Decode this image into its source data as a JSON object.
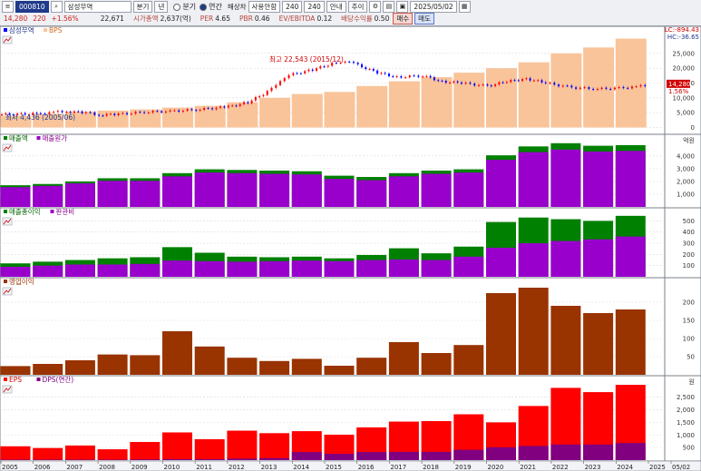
{
  "toolbar": {
    "code": "000810",
    "name": "삼성무역",
    "btn_period": "분기",
    "btn_year": "년",
    "radio_quarter": "분기",
    "radio_annual": "연간",
    "field_type": "해상차",
    "field_mode": "사용안함",
    "count_a": "240",
    "count_b": "240",
    "btn_guide": "안내",
    "btn_add": "추이",
    "date": "2025/05/02",
    "price": "14,280",
    "change": "220",
    "change_pct": "+1.56%",
    "volume": "22,671",
    "mcap_label": "시가총액",
    "mcap_value": "2,637(억)",
    "per_label": "PER",
    "per_value": "4.65",
    "pbr_label": "PBR",
    "pbr_value": "0.46",
    "ev_label": "EV/EBITDA",
    "ev_value": "0.12",
    "div_label": "배당수익률",
    "div_value": "0.50",
    "buy_label": "매수",
    "sell_label": "매도"
  },
  "colors": {
    "bps": "#f9c49a",
    "sales": "#008000",
    "cost": "#9900cc",
    "op": "#993300",
    "eps": "#ff0000",
    "dps": "#800080",
    "candle_up": "#ff0000",
    "candle_down": "#0000ff"
  },
  "chart_data": [
    {
      "type": "bar",
      "panel": "price_bps",
      "legend": [
        "삼성무역",
        "BPS"
      ],
      "categories": [
        "2005",
        "2006",
        "2007",
        "2008",
        "2009",
        "2010",
        "2011",
        "2012",
        "2013",
        "2014",
        "2015",
        "2016",
        "2017",
        "2018",
        "2019",
        "2020",
        "2021",
        "2022",
        "2023",
        "2024"
      ],
      "series": [
        {
          "name": "BPS",
          "values": [
            4000,
            4600,
            5400,
            5700,
            6100,
            6700,
            7300,
            8500,
            10000,
            11300,
            12000,
            14000,
            15600,
            17000,
            18500,
            20000,
            22000,
            25000,
            27000,
            30000
          ]
        }
      ],
      "ylim": [
        -2000,
        32000
      ],
      "yticks": [
        0,
        5000,
        10000,
        15000,
        20000,
        25000
      ],
      "ytick_labels": [
        "0",
        "5,000",
        "10,000",
        "15,000",
        "20,000",
        "25,000"
      ],
      "annotations": [
        "최고 22,543 (2015/12)",
        "최저 4,436 (2005/06)"
      ],
      "right_labels": [
        "LC:-894.43",
        "HC:-36.65"
      ],
      "last_price": "14,280",
      "last_pct": "1.56%"
    },
    {
      "type": "bar",
      "panel": "sales",
      "legend": [
        "매출액",
        "매출원가"
      ],
      "unit": "억원",
      "categories": [
        "2005",
        "2006",
        "2007",
        "2008",
        "2009",
        "2010",
        "2011",
        "2012",
        "2013",
        "2014",
        "2015",
        "2016",
        "2017",
        "2018",
        "2019",
        "2020",
        "2021",
        "2022",
        "2023",
        "2024"
      ],
      "series": [
        {
          "name": "매출액",
          "values": [
            1700,
            1800,
            2000,
            2250,
            2250,
            2650,
            2950,
            2900,
            2850,
            2800,
            2450,
            2350,
            2650,
            2850,
            2950,
            4050,
            4750,
            5000,
            4800,
            4850
          ]
        },
        {
          "name": "매출원가",
          "values": [
            1550,
            1650,
            1850,
            2050,
            2050,
            2400,
            2700,
            2650,
            2600,
            2550,
            2200,
            2100,
            2400,
            2600,
            2700,
            3700,
            4300,
            4500,
            4350,
            4400
          ]
        }
      ],
      "ylim": [
        0,
        5200
      ],
      "yticks": [
        1000,
        2000,
        3000,
        4000
      ],
      "ytick_labels": [
        "1,000",
        "2,000",
        "3,000",
        "4,000"
      ]
    },
    {
      "type": "bar",
      "panel": "gross_sga",
      "legend": [
        "매출총이익",
        "판관비"
      ],
      "categories": [
        "2005",
        "2006",
        "2007",
        "2008",
        "2009",
        "2010",
        "2011",
        "2012",
        "2013",
        "2014",
        "2015",
        "2016",
        "2017",
        "2018",
        "2019",
        "2020",
        "2021",
        "2022",
        "2023",
        "2024"
      ],
      "series": [
        {
          "name": "매출총이익",
          "values": [
            120,
            135,
            150,
            165,
            175,
            265,
            215,
            180,
            175,
            180,
            165,
            195,
            255,
            210,
            270,
            490,
            530,
            515,
            500,
            545
          ]
        },
        {
          "name": "판관비",
          "values": [
            90,
            100,
            110,
            110,
            115,
            145,
            140,
            135,
            140,
            145,
            140,
            150,
            155,
            150,
            180,
            260,
            300,
            320,
            335,
            360
          ]
        }
      ],
      "ylim": [
        0,
        560
      ],
      "yticks": [
        100,
        200,
        300,
        400,
        500
      ],
      "ytick_labels": [
        "100",
        "200",
        "300",
        "400",
        "500"
      ]
    },
    {
      "type": "bar",
      "panel": "op_income",
      "legend": [
        "영업이익"
      ],
      "categories": [
        "2005",
        "2006",
        "2007",
        "2008",
        "2009",
        "2010",
        "2011",
        "2012",
        "2013",
        "2014",
        "2015",
        "2016",
        "2017",
        "2018",
        "2019",
        "2020",
        "2021",
        "2022",
        "2023",
        "2024"
      ],
      "series": [
        {
          "name": "영업이익",
          "values": [
            24,
            30,
            40,
            56,
            54,
            120,
            78,
            47,
            38,
            44,
            25,
            47,
            90,
            60,
            82,
            225,
            240,
            190,
            170,
            180
          ]
        }
      ],
      "ylim": [
        0,
        250
      ],
      "yticks": [
        50,
        100,
        150,
        200
      ],
      "ytick_labels": [
        "50",
        "100",
        "150",
        "200"
      ]
    },
    {
      "type": "bar",
      "panel": "eps_dps",
      "legend": [
        "EPS",
        "DPS(연간)"
      ],
      "unit": "원",
      "categories": [
        "2005",
        "2006",
        "2007",
        "2008",
        "2009",
        "2010",
        "2011",
        "2012",
        "2013",
        "2014",
        "2015",
        "2016",
        "2017",
        "2018",
        "2019",
        "2020",
        "2021",
        "2022",
        "2023",
        "2024"
      ],
      "series": [
        {
          "name": "EPS",
          "values": [
            550,
            480,
            580,
            430,
            720,
            1100,
            830,
            1170,
            1070,
            1150,
            1010,
            1300,
            1530,
            1550,
            1820,
            1500,
            2150,
            2870,
            2700,
            2990
          ]
        },
        {
          "name": "DPS(연간)",
          "values": [
            20,
            20,
            20,
            20,
            30,
            40,
            40,
            60,
            80,
            320,
            250,
            320,
            330,
            330,
            410,
            510,
            560,
            620,
            620,
            680
          ]
        }
      ],
      "ylim": [
        0,
        3100
      ],
      "yticks": [
        500,
        1000,
        1500,
        2000,
        2500
      ],
      "ytick_labels": [
        "500",
        "1,000",
        "1,500",
        "2,000",
        "2,500"
      ]
    }
  ],
  "x_axis_labels": [
    "2005",
    "2006",
    "2007",
    "2008",
    "2009",
    "2010",
    "2011",
    "2012",
    "2013",
    "2014",
    "2015",
    "2016",
    "2017",
    "2018",
    "2019",
    "2020",
    "2021",
    "2022",
    "2023",
    "2024",
    "2025",
    "05/02"
  ]
}
